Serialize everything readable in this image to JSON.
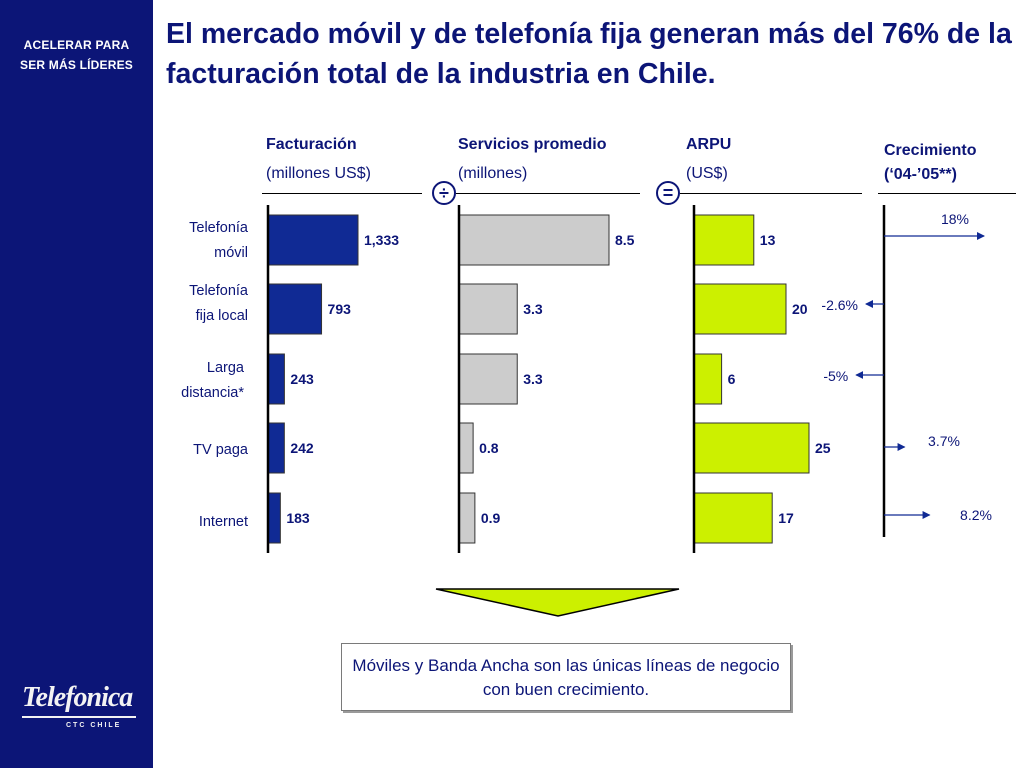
{
  "sidebar": {
    "tag_line1": "ACELERAR PARA",
    "tag_line2": "SER MÁS LÍDERES",
    "logo_brand": "Telefonica",
    "logo_sub": "CTC CHILE"
  },
  "title": "El mercado móvil y de telefonía fija generan más del 76% de la facturación total de la industria en Chile.",
  "operators": {
    "divide": "÷",
    "equals": "="
  },
  "rows": [
    {
      "line1": "Telefonía",
      "line2": "móvil"
    },
    {
      "line1": "Telefonía",
      "line2": "fija local"
    },
    {
      "line1": "Larga",
      "line2": "distancia*"
    },
    {
      "line1": "TV paga",
      "line2": ""
    },
    {
      "line1": "Internet",
      "line2": ""
    }
  ],
  "message": "Móviles y Banda Ancha son las únicas líneas de negocio con buen crecimiento.",
  "chart_data": [
    {
      "type": "bar",
      "orientation": "horizontal",
      "title": "Facturación",
      "subtitle": "(millones US$)",
      "categories": [
        "Telefonía móvil",
        "Telefonía fija local",
        "Larga distancia*",
        "TV paga",
        "Internet"
      ],
      "values": [
        1333,
        793,
        243,
        242,
        183
      ],
      "labels": [
        "1,333",
        "793",
        "243",
        "242",
        "183"
      ],
      "color": "#102a94",
      "xlim": [
        0,
        1333
      ]
    },
    {
      "type": "bar",
      "orientation": "horizontal",
      "title": "Servicios promedio",
      "subtitle": "(millones)",
      "categories": [
        "Telefonía móvil",
        "Telefonía fija local",
        "Larga distancia*",
        "TV paga",
        "Internet"
      ],
      "values": [
        8.5,
        3.3,
        3.3,
        0.8,
        0.9
      ],
      "labels": [
        "8.5",
        "3.3",
        "3.3",
        "0.8",
        "0.9"
      ],
      "color": "#cccccc",
      "xlim": [
        0,
        8.5
      ]
    },
    {
      "type": "bar",
      "orientation": "horizontal",
      "title": "ARPU",
      "subtitle": "(US$)",
      "categories": [
        "Telefonía móvil",
        "Telefonía fija local",
        "Larga distancia*",
        "TV paga",
        "Internet"
      ],
      "values": [
        13,
        20,
        6,
        25,
        17
      ],
      "labels": [
        "13",
        "20",
        "6",
        "25",
        "17"
      ],
      "color": "#ccf000",
      "xlim": [
        0,
        25
      ]
    },
    {
      "type": "arrow",
      "title": "Crecimiento",
      "subtitle": "(‘04-’05**)",
      "categories": [
        "Telefonía móvil",
        "Telefonía fija local",
        "Larga distancia*",
        "TV paga",
        "Internet"
      ],
      "values": [
        18,
        -2.6,
        -5,
        3.7,
        8.2
      ],
      "labels": [
        "18%",
        "-2.6%",
        "-5%",
        "3.7%",
        "8.2%"
      ]
    }
  ]
}
